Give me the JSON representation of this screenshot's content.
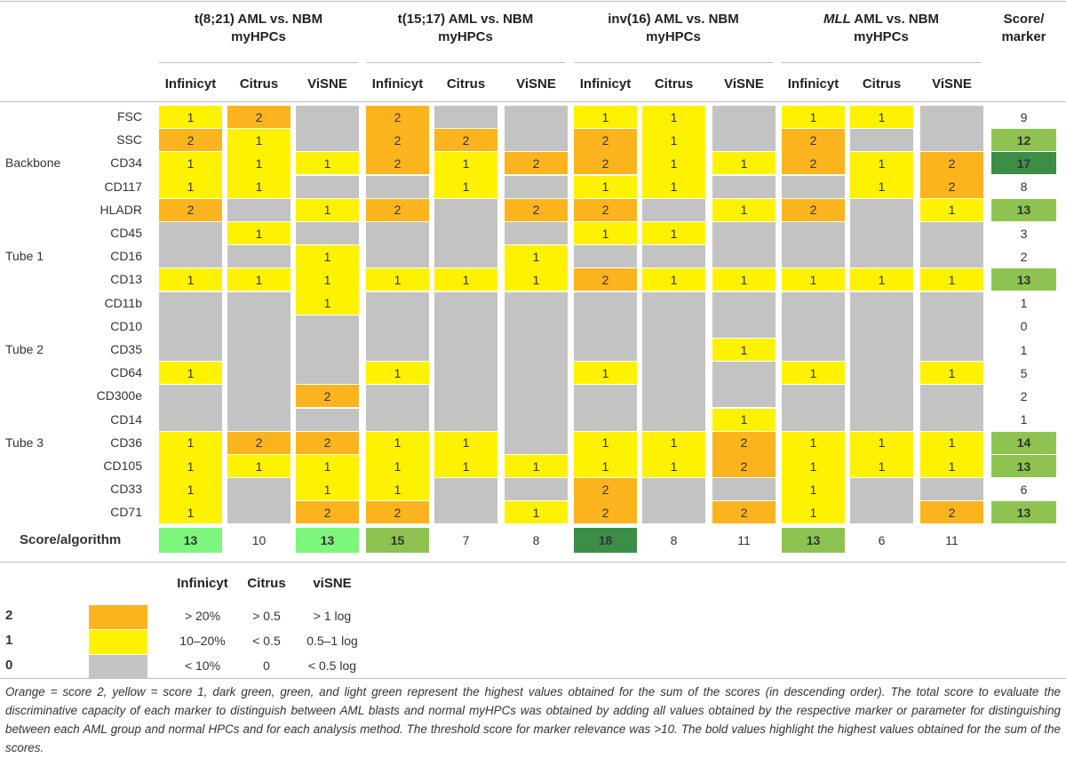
{
  "header": {
    "groups": [
      {
        "line1_prefix": "",
        "line1_italic": "",
        "line1_text": "t(8;21) AML vs. NBM",
        "line2": "myHPCs"
      },
      {
        "line1_prefix": "",
        "line1_italic": "",
        "line1_text": "t(15;17) AML vs. NBM",
        "line2": "myHPCs"
      },
      {
        "line1_prefix": "",
        "line1_italic": "",
        "line1_text": "inv(16) AML vs. NBM",
        "line2": "myHPCs"
      },
      {
        "line1_prefix": "",
        "line1_italic": "MLL",
        "line1_text": " AML vs. NBM",
        "line2": "myHPCs"
      }
    ],
    "methods": [
      "Infinicyt",
      "Citrus",
      "ViSNE"
    ],
    "score_marker": {
      "line1": "Score/",
      "line2": "marker"
    }
  },
  "colors": {
    "score2": "#fbb41d",
    "score1": "#fff200",
    "score0": "#c3c3c3",
    "green_dark": "#3c8e47",
    "green_mid": "#8ec351",
    "green_light": "#7cf77b"
  },
  "rows": [
    {
      "group": "",
      "marker": "FSC",
      "values": [
        1,
        2,
        0,
        2,
        0,
        0,
        1,
        1,
        0,
        1,
        1,
        0
      ],
      "total": "9",
      "total_level": null
    },
    {
      "group": "",
      "marker": "SSC",
      "values": [
        2,
        1,
        0,
        2,
        2,
        0,
        2,
        1,
        0,
        2,
        0,
        0
      ],
      "total": "12",
      "total_level": "mid"
    },
    {
      "group": "Backbone",
      "marker": "CD34",
      "values": [
        1,
        1,
        1,
        2,
        1,
        2,
        2,
        1,
        1,
        2,
        1,
        2
      ],
      "total": "17",
      "total_level": "dark"
    },
    {
      "group": "",
      "marker": "CD117",
      "values": [
        1,
        1,
        0,
        0,
        1,
        0,
        1,
        1,
        0,
        0,
        1,
        2
      ],
      "total": "8",
      "total_level": null
    },
    {
      "group": "",
      "marker": "HLADR",
      "values": [
        2,
        0,
        1,
        2,
        0,
        2,
        2,
        0,
        1,
        2,
        0,
        1
      ],
      "total": "13",
      "total_level": "mid"
    },
    {
      "group": "",
      "marker": "CD45",
      "values": [
        0,
        1,
        0,
        0,
        0,
        0,
        1,
        1,
        0,
        0,
        0,
        0
      ],
      "total": "3",
      "total_level": null
    },
    {
      "group": "Tube 1",
      "marker": "CD16",
      "values": [
        0,
        0,
        1,
        0,
        0,
        1,
        0,
        0,
        0,
        0,
        0,
        0
      ],
      "total": "2",
      "total_level": null
    },
    {
      "group": "",
      "marker": "CD13",
      "values": [
        1,
        1,
        1,
        1,
        1,
        1,
        2,
        1,
        1,
        1,
        1,
        1
      ],
      "total": "13",
      "total_level": "mid"
    },
    {
      "group": "",
      "marker": "CD11b",
      "values": [
        0,
        0,
        1,
        0,
        0,
        0,
        0,
        0,
        0,
        0,
        0,
        0
      ],
      "total": "1",
      "total_level": null
    },
    {
      "group": "",
      "marker": "CD10",
      "values": [
        0,
        0,
        0,
        0,
        0,
        0,
        0,
        0,
        0,
        0,
        0,
        0
      ],
      "total": "0",
      "total_level": null
    },
    {
      "group": "Tube 2",
      "marker": "CD35",
      "values": [
        0,
        0,
        0,
        0,
        0,
        0,
        0,
        0,
        1,
        0,
        0,
        0
      ],
      "total": "1",
      "total_level": null
    },
    {
      "group": "",
      "marker": "CD64",
      "values": [
        1,
        0,
        0,
        1,
        0,
        0,
        1,
        0,
        0,
        1,
        0,
        1
      ],
      "total": "5",
      "total_level": null
    },
    {
      "group": "",
      "marker": "CD300e",
      "values": [
        0,
        0,
        2,
        0,
        0,
        0,
        0,
        0,
        0,
        0,
        0,
        0
      ],
      "total": "2",
      "total_level": null
    },
    {
      "group": "",
      "marker": "CD14",
      "values": [
        0,
        0,
        0,
        0,
        0,
        0,
        0,
        0,
        1,
        0,
        0,
        0
      ],
      "total": "1",
      "total_level": null
    },
    {
      "group": "Tube 3",
      "marker": "CD36",
      "values": [
        1,
        2,
        2,
        1,
        1,
        0,
        1,
        1,
        2,
        1,
        1,
        1
      ],
      "total": "14",
      "total_level": "mid"
    },
    {
      "group": "",
      "marker": "CD105",
      "values": [
        1,
        1,
        1,
        1,
        1,
        1,
        1,
        1,
        2,
        1,
        1,
        1
      ],
      "total": "13",
      "total_level": "mid"
    },
    {
      "group": "",
      "marker": "CD33",
      "values": [
        1,
        0,
        1,
        1,
        0,
        0,
        2,
        0,
        0,
        1,
        0,
        0
      ],
      "total": "6",
      "total_level": null
    },
    {
      "group": "",
      "marker": "CD71",
      "values": [
        1,
        0,
        2,
        2,
        0,
        1,
        2,
        0,
        2,
        1,
        0,
        2
      ],
      "total": "13",
      "total_level": "mid"
    }
  ],
  "score_algorithm": {
    "label": "Score/algorithm",
    "values": [
      {
        "value": "13",
        "level": "light"
      },
      {
        "value": "10",
        "level": null
      },
      {
        "value": "13",
        "level": "light"
      },
      {
        "value": "15",
        "level": "mid"
      },
      {
        "value": "7",
        "level": null
      },
      {
        "value": "8",
        "level": null
      },
      {
        "value": "18",
        "level": "dark"
      },
      {
        "value": "8",
        "level": null
      },
      {
        "value": "11",
        "level": null
      },
      {
        "value": "13",
        "level": "mid"
      },
      {
        "value": "6",
        "level": null
      },
      {
        "value": "11",
        "level": null
      }
    ]
  },
  "legend": {
    "headers": [
      "Infinicyt",
      "Citrus",
      "viSNE"
    ],
    "rows": [
      {
        "score": "2",
        "level": 2,
        "cols": [
          "> 20%",
          "> 0.5",
          "> 1 log"
        ]
      },
      {
        "score": "1",
        "level": 1,
        "cols": [
          "10–20%",
          "< 0.5",
          "0.5–1 log"
        ]
      },
      {
        "score": "0",
        "level": 0,
        "cols": [
          "< 10%",
          "0",
          "< 0.5 log"
        ]
      }
    ]
  },
  "caption": "Orange = score 2, yellow = score 1, dark green, green, and light green represent the highest values obtained for the sum of the scores (in descending order). The total score to evaluate the discriminative capacity of each marker to distinguish between AML blasts and normal myHPCs was obtained by adding all values obtained by the respective marker or parameter for distinguishing between each AML group and normal HPCs and for each analysis method. The threshold score for marker relevance was >10. The bold values highlight the highest values obtained for the sum of the scores."
}
